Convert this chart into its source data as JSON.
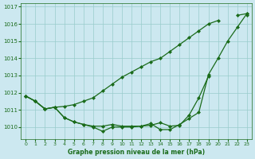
{
  "background_color": "#cce8f0",
  "plot_bg_color": "#cce8f0",
  "grid_color": "#99cccc",
  "line_color": "#1a6b1a",
  "marker_color": "#1a6b1a",
  "xlabel": "Graphe pression niveau de la mer (hPa)",
  "xlabel_color": "#1a6b1a",
  "tick_color": "#1a6b1a",
  "ylim": [
    1009.3,
    1017.2
  ],
  "xlim": [
    -0.5,
    23.5
  ],
  "yticks": [
    1010,
    1011,
    1012,
    1013,
    1014,
    1015,
    1016,
    1017
  ],
  "xticks": [
    0,
    1,
    2,
    3,
    4,
    5,
    6,
    7,
    8,
    9,
    10,
    11,
    12,
    13,
    14,
    15,
    16,
    17,
    18,
    19,
    20,
    21,
    22,
    23
  ],
  "line1": [
    1011.8,
    1011.5,
    1011.05,
    1011.15,
    1011.2,
    1011.3,
    1011.5,
    1011.7,
    1012.1,
    1012.5,
    1012.9,
    1013.2,
    1013.5,
    1013.8,
    1014.0,
    1014.4,
    1014.8,
    1015.2,
    1015.6,
    1016.0,
    1016.2,
    null,
    1016.5,
    1016.6
  ],
  "line2": [
    1011.8,
    1011.5,
    1011.05,
    1011.15,
    1010.55,
    1010.3,
    1010.15,
    1010.05,
    1010.05,
    1010.15,
    1010.05,
    1010.05,
    1010.05,
    1010.1,
    1010.25,
    1010.05,
    1010.1,
    1010.7,
    1011.7,
    1012.95,
    null,
    null,
    null,
    1016.5
  ],
  "line3": [
    1011.8,
    1011.5,
    1011.05,
    1011.15,
    1010.55,
    1010.3,
    1010.15,
    1010.0,
    1009.75,
    1010.0,
    1010.0,
    1010.0,
    1010.05,
    1010.2,
    1009.85,
    1009.85,
    1010.15,
    1010.5,
    1010.85,
    1013.05,
    1014.0,
    1015.0,
    1015.8,
    1016.6
  ]
}
